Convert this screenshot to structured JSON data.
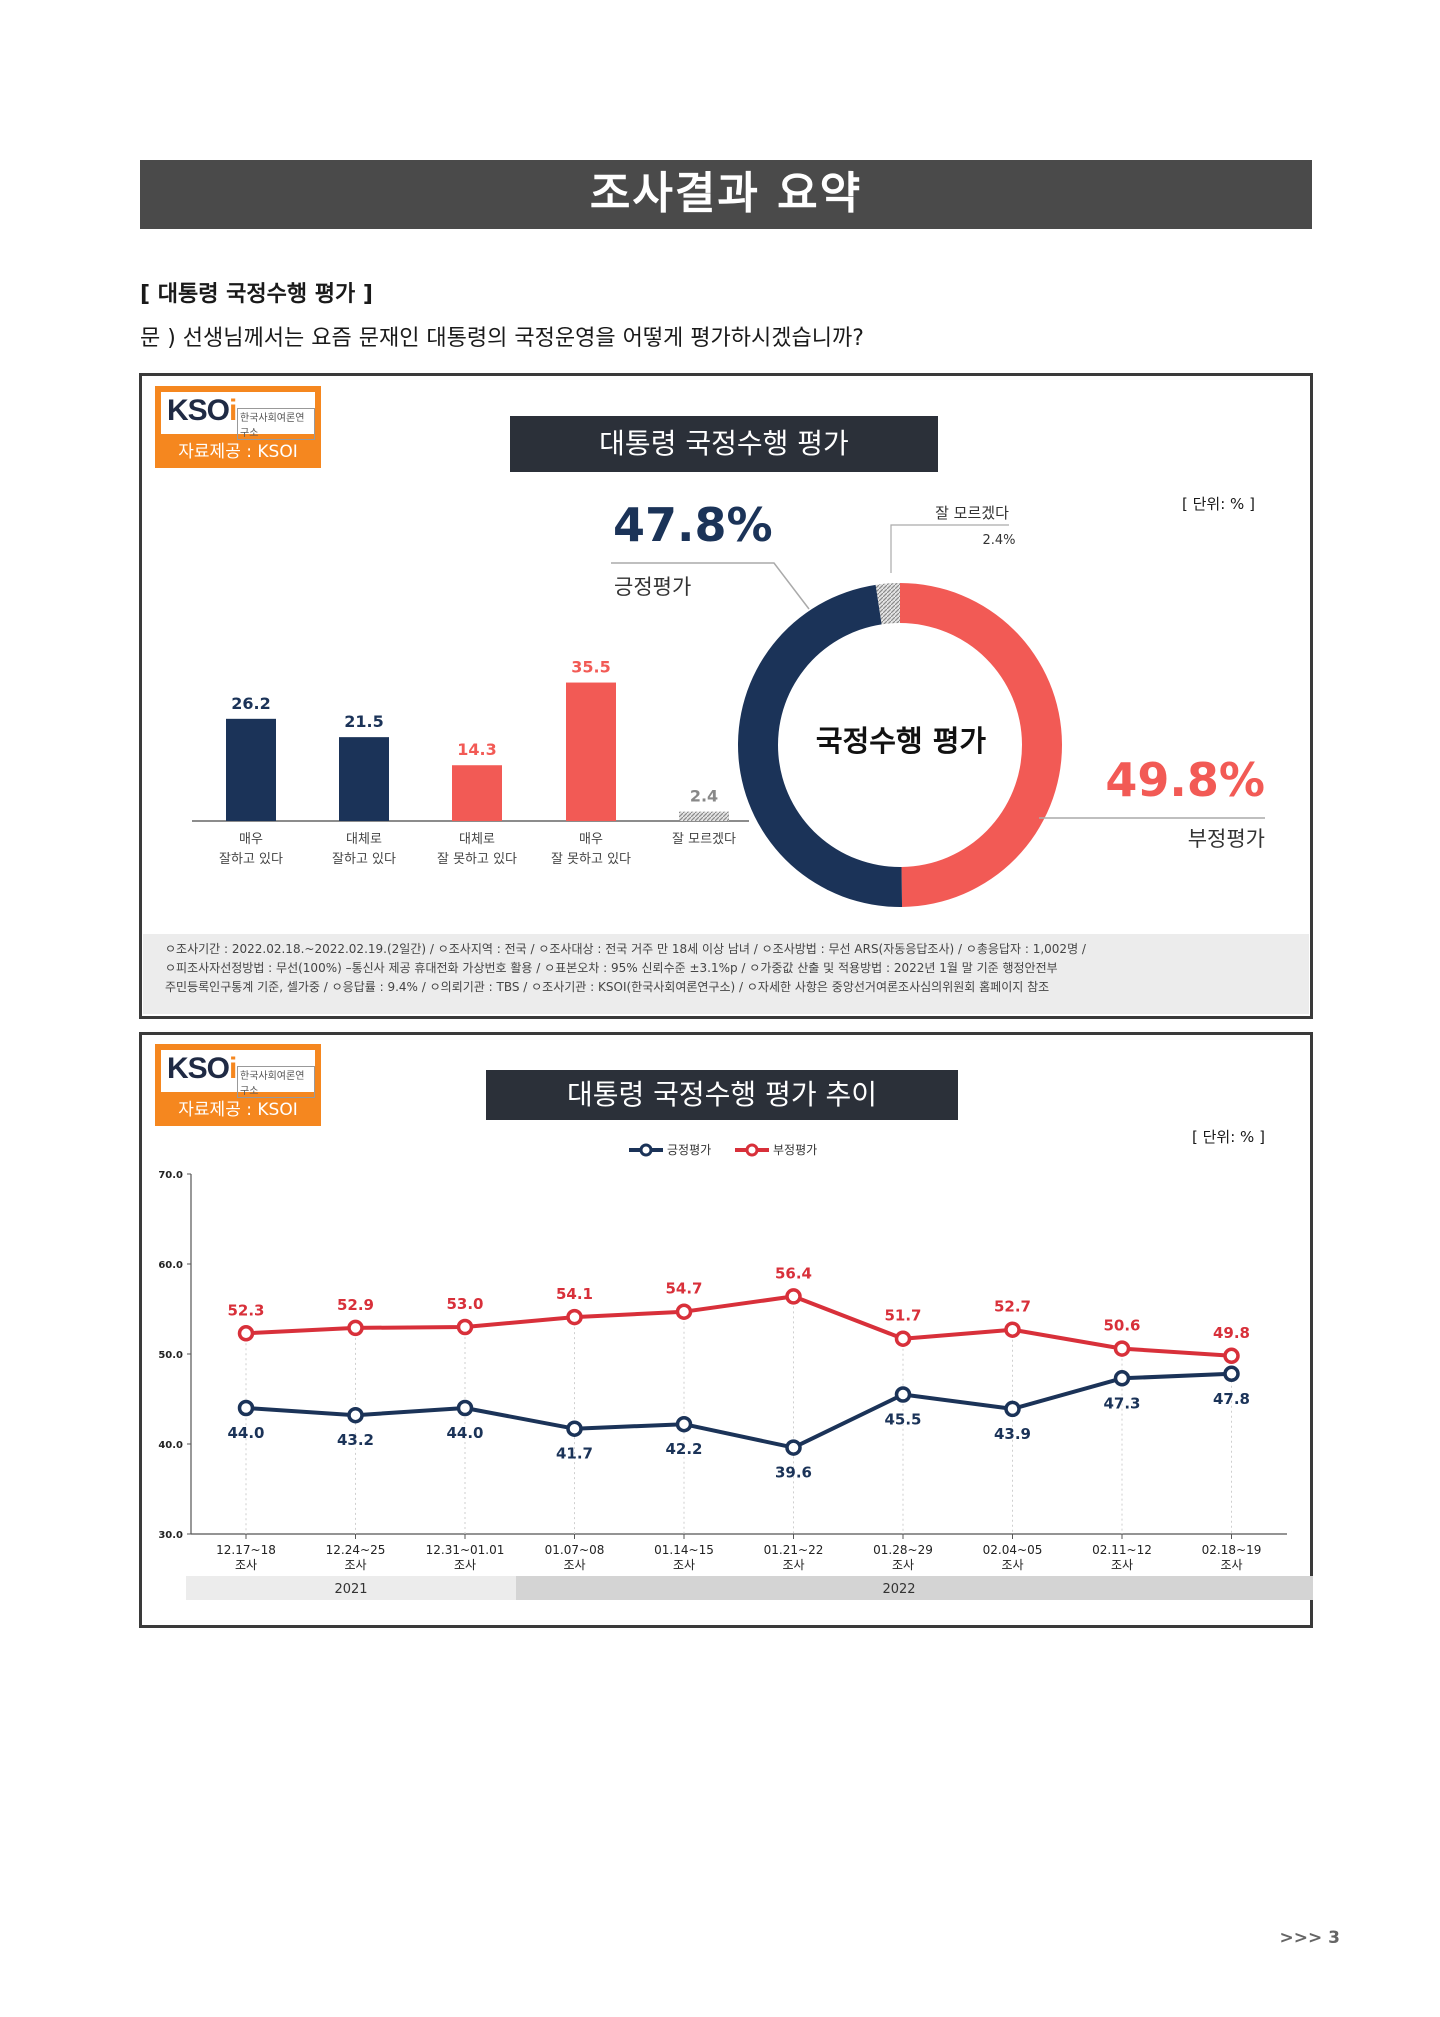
{
  "header": {
    "title": "조사결과 요약"
  },
  "section": {
    "title": "[ 대통령 국정수행 평가 ]",
    "question": "문 )    선생님께서는 요즘 문재인 대통령의 국정운영을 어떻게 평가하시겠습니까?"
  },
  "logo": {
    "brand": "KSOI",
    "sub": "한국사회여론연구소",
    "source": "자료제공 : KSOI"
  },
  "panel1": {
    "title": "대통령 국정수행 평가",
    "unit": "[ 단위: % ]",
    "donut_center": "국정수행 평가",
    "positive": {
      "value": "47.8%",
      "label": "긍정평가",
      "color": "#1b3358"
    },
    "negative": {
      "value": "49.8%",
      "label": "부정평가",
      "color": "#f25a55"
    },
    "unknown": {
      "value": "2.4%",
      "label": "잘 모르겠다"
    }
  },
  "footnote": {
    "line1": "ㅇ조사기간 : 2022.02.18.~2022.02.19.(2일간)  / ㅇ조사지역 : 전국 / ㅇ조사대상 : 전국 거주 만 18세 이상 남녀 / ㅇ조사방법 : 무선 ARS(자동응답조사) / ㅇ총응답자 : 1,002명 /",
    "line2": "ㅇ피조사자선정방법 : 무선(100%) –통신사 제공 휴대전화 가상번호 활용 / ㅇ표본오차 : 95% 신뢰수준 ±3.1%p / ㅇ가중값 산출 및 적용방법 : 2022년 1월 말 기준 행정안전부",
    "line3": "주민등록인구통계 기준, 셀가중 / ㅇ응답률 : 9.4% / ㅇ의뢰기관 : TBS / ㅇ조사기관 : KSOI(한국사회여론연구소) / ㅇ자세한 사항은 중앙선거여론조사심의위원회 홈페이지 참조"
  },
  "panel2": {
    "title": "대통령 국정수행 평가 추이",
    "unit": "[ 단위: % ]",
    "years": [
      "2021",
      "2022"
    ]
  },
  "page_number": ">>> 3",
  "chart_data": [
    {
      "type": "bar",
      "categories": [
        [
          "매우",
          "잘하고 있다"
        ],
        [
          "대체로",
          "잘하고 있다"
        ],
        [
          "대체로",
          "잘 못하고 있다"
        ],
        [
          "매우",
          "잘 못하고 있다"
        ],
        [
          "잘 모르겠다"
        ]
      ],
      "values": [
        26.2,
        21.5,
        14.3,
        35.5,
        2.4
      ],
      "colors": [
        "#1b3358",
        "#1b3358",
        "#f25a55",
        "#f25a55",
        "#b0b0b0"
      ],
      "title": "",
      "xlabel": "",
      "ylabel": ""
    },
    {
      "type": "pie",
      "labels": [
        "긍정평가",
        "부정평가",
        "잘 모르겠다"
      ],
      "values": [
        47.8,
        49.8,
        2.4
      ],
      "colors": [
        "#1b3358",
        "#f25a55",
        "#b0b0b0"
      ],
      "donut": true
    },
    {
      "type": "line",
      "x": [
        [
          "12.17~18",
          "조사"
        ],
        [
          "12.24~25",
          "조사"
        ],
        [
          "12.31~01.01",
          "조사"
        ],
        [
          "01.07~08",
          "조사"
        ],
        [
          "01.14~15",
          "조사"
        ],
        [
          "01.21~22",
          "조사"
        ],
        [
          "01.28~29",
          "조사"
        ],
        [
          "02.04~05",
          "조사"
        ],
        [
          "02.11~12",
          "조사"
        ],
        [
          "02.18~19",
          "조사"
        ]
      ],
      "series": [
        {
          "name": "긍정평가",
          "color": "#1b3358",
          "values": [
            44.0,
            43.2,
            44.0,
            41.7,
            42.2,
            39.6,
            45.5,
            43.9,
            47.3,
            47.8
          ]
        },
        {
          "name": "부정평가",
          "color": "#d8303a",
          "values": [
            52.3,
            52.9,
            53.0,
            54.1,
            54.7,
            56.4,
            51.7,
            52.7,
            50.6,
            49.8
          ]
        }
      ],
      "yticks": [
        "70.0",
        "60.0",
        "50.0",
        "40.0",
        "30.0"
      ],
      "ylim": [
        30,
        70
      ],
      "legend": "top-center",
      "grid": false
    }
  ]
}
